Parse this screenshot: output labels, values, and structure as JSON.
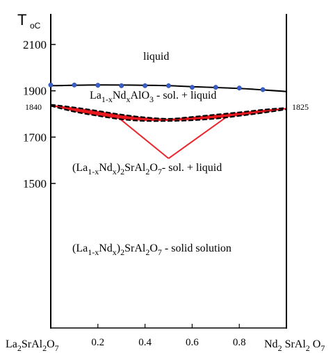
{
  "chart_data": {
    "type": "line",
    "title": "",
    "ylabel": {
      "main": "T",
      "sub": "oC"
    },
    "xlabel": "",
    "xlim": [
      0,
      1
    ],
    "ylim": [
      1300,
      2200
    ],
    "y_ticks": [
      "2100",
      "1900",
      "1700",
      "1500"
    ],
    "y_tick_values": [
      2100,
      1900,
      1700,
      1500
    ],
    "x_ticks": [
      "0.2",
      "0.4",
      "0.6",
      "0.8"
    ],
    "x_tick_values": [
      0.2,
      0.4,
      0.6,
      0.8
    ],
    "endmember_left": {
      "base": "La",
      "s1": "2",
      "mid": "SrAl",
      "s2": "2",
      "end": "O",
      "s3": "7"
    },
    "endmember_right": {
      "base": "Nd",
      "s1": "2",
      "mid": " SrAl",
      "s2": "2",
      "end": " O",
      "s3": "7"
    },
    "endpoint_labels": {
      "left": "1840",
      "right": "1825"
    },
    "regions": {
      "liquid": "liquid",
      "perovskite": {
        "a": "La",
        "a_sub": "1-x",
        "b": "Nd",
        "b_sub": "x",
        "c": "AlO",
        "c_sub": "3",
        "d": " - sol. + liquid"
      },
      "two_phase": {
        "a": "(La",
        "a_sub": "1-x",
        "b": "Nd",
        "b_sub": "x",
        "c": ")",
        "c_sub": "2",
        "d": "SrAl",
        "d_sub": "2",
        "e": "O",
        "e_sub": "7",
        "f": "- sol.  +  liquid"
      },
      "solid": {
        "a": "(La",
        "a_sub": "1-x",
        "b": "Nd",
        "b_sub": "x",
        "c": ")",
        "c_sub": "2",
        "d": "SrAl",
        "d_sub": "2",
        "e": "O",
        "e_sub": "7",
        "f": " - solid solution"
      }
    },
    "series": [
      {
        "role": "liquidus",
        "style": "solid",
        "color": "#000000",
        "x": [
          0,
          0.2,
          0.4,
          0.5,
          0.6,
          0.8,
          1.0
        ],
        "y": [
          1922,
          1925,
          1924,
          1922,
          1918,
          1910,
          1897
        ]
      },
      {
        "role": "liquidus-data",
        "style": "points",
        "color": "#3a5fc8",
        "x": [
          0,
          0.1,
          0.2,
          0.3,
          0.4,
          0.5,
          0.6,
          0.7,
          0.8,
          0.9
        ],
        "y": [
          1925,
          1925,
          1924,
          1922,
          1922,
          1922,
          1915,
          1915,
          1912,
          1905
        ]
      },
      {
        "role": "upper-boundary",
        "style": "dashed",
        "color": "#000000",
        "x": [
          0,
          0.1,
          0.2,
          0.3,
          0.4,
          0.5,
          0.6,
          0.7,
          0.8,
          0.9,
          1.0
        ],
        "y": [
          1840,
          1828,
          1813,
          1797,
          1785,
          1779,
          1787,
          1797,
          1807,
          1818,
          1826
        ]
      },
      {
        "role": "lower-boundary",
        "style": "dashed",
        "color": "#000000",
        "x": [
          0,
          0.1,
          0.2,
          0.3,
          0.4,
          0.5,
          0.6,
          0.7,
          0.8,
          0.9,
          1.0
        ],
        "y": [
          1835,
          1810,
          1792,
          1777,
          1770,
          1770,
          1773,
          1780,
          1792,
          1805,
          1820
        ]
      }
    ],
    "two_phase_fill_color": "#e8191e",
    "pointer_lines": {
      "color": "#e8262d",
      "from": [
        [
          0.28,
          1790
        ],
        [
          0.75,
          1790
        ]
      ],
      "to": [
        0.5,
        1608
      ]
    },
    "grid": false
  }
}
